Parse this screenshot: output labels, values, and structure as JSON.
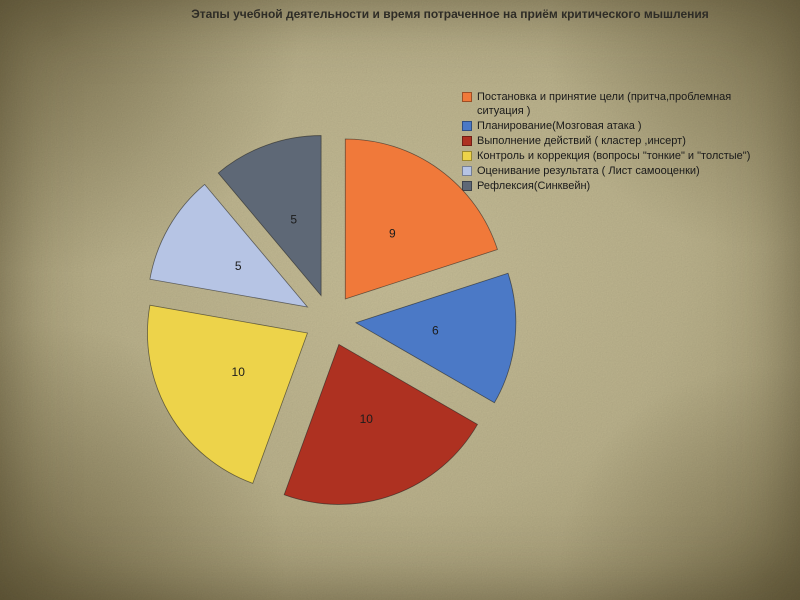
{
  "slide": {
    "title": "Этапы учебной деятельности  и время потраченное на приём критического мышления"
  },
  "chart_data": {
    "type": "pie",
    "title": "Этапы учебной деятельности  и время потраченное на приём критического мышления",
    "exploded": true,
    "legend_position": "top-right",
    "total": 45,
    "categories": [
      "Постановка и принятие цели (притча,проблемная ситуация )",
      "Планирование(Мозговая атака )",
      "Выполнение действий ( кластер ,инсерт)",
      "Контроль и коррекция (вопросы \"тонкие\" и \"толстые\")",
      "Оценивание результата ( Лист  самооценки)",
      "Рефлексия(Синквейн)"
    ],
    "values": [
      9,
      6,
      10,
      10,
      5,
      5
    ],
    "slices": [
      {
        "label": "Постановка и принятие цели (притча,проблемная ситуация )",
        "value": 9,
        "color": "#f0793a"
      },
      {
        "label": "Планирование(Мозговая атака )",
        "value": 6,
        "color": "#4b79c6"
      },
      {
        "label": "Выполнение действий ( кластер ,инсерт)",
        "value": 10,
        "color": "#ae3121"
      },
      {
        "label": "Контроль и коррекция (вопросы \"тонкие\" и \"толстые\")",
        "value": 10,
        "color": "#edd34a"
      },
      {
        "label": "Оценивание результата ( Лист  самооценки)",
        "value": 5,
        "color": "#b6c4e4"
      },
      {
        "label": "Рефлексия(Синквейн)",
        "value": 5,
        "color": "#5e6876"
      }
    ],
    "slice_border_color": "#1f1f1f",
    "label_color": "#1c1c1c"
  }
}
